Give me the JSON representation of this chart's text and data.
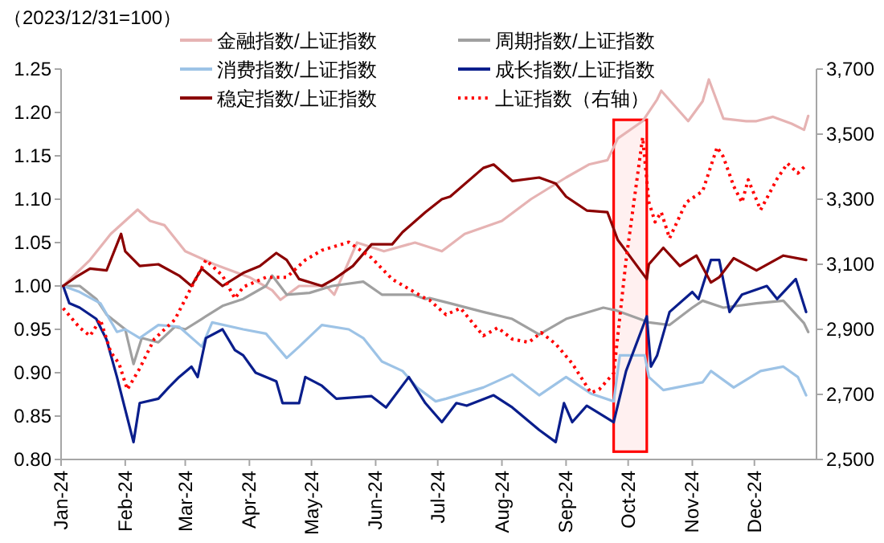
{
  "chart_data": {
    "type": "line",
    "ylabel": "（2023/12/31=100）",
    "legend": "top",
    "xlim": [
      "2024-01-01",
      "2024-12-31"
    ],
    "xticks": [
      {
        "value": "2024-01-01",
        "label": "Jan-24"
      },
      {
        "value": "2024-02-01",
        "label": "Feb-24"
      },
      {
        "value": "2024-03-01",
        "label": "Mar-24"
      },
      {
        "value": "2024-04-01",
        "label": "Apr-24"
      },
      {
        "value": "2024-05-01",
        "label": "May-24"
      },
      {
        "value": "2024-06-01",
        "label": "Jun-24"
      },
      {
        "value": "2024-07-01",
        "label": "Jul-24"
      },
      {
        "value": "2024-08-01",
        "label": "Aug-24"
      },
      {
        "value": "2024-09-01",
        "label": "Sep-24"
      },
      {
        "value": "2024-10-01",
        "label": "Oct-24"
      },
      {
        "value": "2024-11-01",
        "label": "Nov-24"
      },
      {
        "value": "2024-12-01",
        "label": "Dec-24"
      }
    ],
    "ylim": [
      0.8,
      1.25
    ],
    "yticks": [
      {
        "value": 0.8,
        "label": "0.80"
      },
      {
        "value": 0.85,
        "label": "0.85"
      },
      {
        "value": 0.9,
        "label": "0.90"
      },
      {
        "value": 0.95,
        "label": "0.95"
      },
      {
        "value": 1,
        "label": "1.00"
      },
      {
        "value": 1.05,
        "label": "1.05"
      },
      {
        "value": 1.1,
        "label": "1.10"
      },
      {
        "value": 1.15,
        "label": "1.15"
      },
      {
        "value": 1.2,
        "label": "1.20"
      },
      {
        "value": 1.25,
        "label": "1.25"
      }
    ],
    "y2lim": [
      2500,
      3700
    ],
    "y2ticks": [
      {
        "value": 2500,
        "label": "2,500"
      },
      {
        "value": 2700,
        "label": "2,700"
      },
      {
        "value": 2900,
        "label": "2,900"
      },
      {
        "value": 3100,
        "label": "3,100"
      },
      {
        "value": 3300,
        "label": "3,300"
      },
      {
        "value": 3500,
        "label": "3,500"
      },
      {
        "value": 3700,
        "label": "3,700"
      }
    ],
    "bands": [
      {
        "axis": "x",
        "from": "2024-09-24",
        "to": "2024-10-10",
        "color": "#ff0000"
      }
    ],
    "series": [
      {
        "name": "金融指数/上证指数",
        "color": "#e6b3b3",
        "x": [
          "2024-01-02",
          "2024-01-15",
          "2024-01-25",
          "2024-02-07",
          "2024-02-13",
          "2024-02-20",
          "2024-03-01",
          "2024-03-15",
          "2024-04-01",
          "2024-04-12",
          "2024-04-16",
          "2024-04-25",
          "2024-05-08",
          "2024-05-12",
          "2024-05-23",
          "2024-06-05",
          "2024-06-20",
          "2024-07-03",
          "2024-07-14",
          "2024-08-01",
          "2024-08-15",
          "2024-09-01",
          "2024-09-12",
          "2024-09-21",
          "2024-09-26",
          "2024-10-08",
          "2024-10-15",
          "2024-10-17",
          "2024-10-30",
          "2024-11-06",
          "2024-11-09",
          "2024-11-16",
          "2024-11-27",
          "2024-12-02",
          "2024-12-10",
          "2024-12-19",
          "2024-12-25",
          "2024-12-27"
        ],
        "values": [
          1.0,
          1.03,
          1.06,
          1.088,
          1.075,
          1.07,
          1.04,
          1.025,
          1.01,
          0.995,
          0.984,
          1.0,
          1.0,
          0.99,
          1.05,
          1.04,
          1.05,
          1.04,
          1.06,
          1.075,
          1.1,
          1.125,
          1.14,
          1.145,
          1.17,
          1.19,
          1.215,
          1.225,
          1.19,
          1.213,
          1.238,
          1.193,
          1.19,
          1.19,
          1.195,
          1.187,
          1.18,
          1.196
        ]
      },
      {
        "name": "周期指数/上证指数",
        "color": "#a0a0a0",
        "x": [
          "2024-01-02",
          "2024-01-10",
          "2024-01-18",
          "2024-01-23",
          "2024-02-01",
          "2024-02-05",
          "2024-02-09",
          "2024-02-17",
          "2024-02-25",
          "2024-03-01",
          "2024-03-09",
          "2024-03-19",
          "2024-03-29",
          "2024-04-09",
          "2024-04-12",
          "2024-04-19",
          "2024-04-30",
          "2024-05-11",
          "2024-05-26",
          "2024-06-04",
          "2024-06-19",
          "2024-06-25",
          "2024-06-27",
          "2024-07-07",
          "2024-07-23",
          "2024-08-06",
          "2024-08-19",
          "2024-09-01",
          "2024-09-19",
          "2024-09-25",
          "2024-10-11",
          "2024-10-21",
          "2024-11-01",
          "2024-11-06",
          "2024-11-16",
          "2024-12-02",
          "2024-12-15",
          "2024-12-25",
          "2024-12-27"
        ],
        "values": [
          1.0,
          1.0,
          0.985,
          0.967,
          0.95,
          0.91,
          0.94,
          0.935,
          0.953,
          0.95,
          0.962,
          0.977,
          0.985,
          1.0,
          1.012,
          0.99,
          0.992,
          1.0,
          1.005,
          0.99,
          0.99,
          0.985,
          0.986,
          0.98,
          0.97,
          0.962,
          0.944,
          0.962,
          0.975,
          0.972,
          0.958,
          0.955,
          0.975,
          0.983,
          0.975,
          0.98,
          0.983,
          0.957,
          0.947
        ]
      },
      {
        "name": "消费指数/上证指数",
        "color": "#9dc3e6",
        "x": [
          "2024-01-02",
          "2024-01-10",
          "2024-01-20",
          "2024-01-28",
          "2024-02-01",
          "2024-02-08",
          "2024-02-17",
          "2024-02-27",
          "2024-03-09",
          "2024-03-14",
          "2024-03-29",
          "2024-04-09",
          "2024-04-19",
          "2024-04-25",
          "2024-05-06",
          "2024-05-19",
          "2024-05-26",
          "2024-06-04",
          "2024-06-14",
          "2024-06-21",
          "2024-06-30",
          "2024-07-05",
          "2024-07-23",
          "2024-08-06",
          "2024-08-19",
          "2024-09-01",
          "2024-09-13",
          "2024-09-24",
          "2024-09-27",
          "2024-10-09",
          "2024-10-11",
          "2024-10-18",
          "2024-11-06",
          "2024-11-10",
          "2024-11-21",
          "2024-12-04",
          "2024-12-15",
          "2024-12-22",
          "2024-12-26"
        ],
        "values": [
          1.0,
          0.993,
          0.98,
          0.947,
          0.95,
          0.94,
          0.955,
          0.953,
          0.93,
          0.958,
          0.95,
          0.945,
          0.917,
          0.93,
          0.955,
          0.95,
          0.94,
          0.913,
          0.902,
          0.883,
          0.867,
          0.87,
          0.883,
          0.898,
          0.874,
          0.895,
          0.876,
          0.867,
          0.92,
          0.92,
          0.895,
          0.88,
          0.889,
          0.902,
          0.883,
          0.902,
          0.907,
          0.895,
          0.874
        ]
      },
      {
        "name": "成长指数/上证指数",
        "color": "#0a1e8c",
        "x": [
          "2024-01-02",
          "2024-01-05",
          "2024-01-10",
          "2024-01-18",
          "2024-01-23",
          "2024-01-28",
          "2024-02-05",
          "2024-02-08",
          "2024-02-17",
          "2024-02-22",
          "2024-02-27",
          "2024-03-04",
          "2024-03-07",
          "2024-03-11",
          "2024-03-19",
          "2024-03-25",
          "2024-03-29",
          "2024-04-04",
          "2024-04-14",
          "2024-04-17",
          "2024-04-25",
          "2024-04-28",
          "2024-05-06",
          "2024-05-13",
          "2024-05-30",
          "2024-06-06",
          "2024-06-17",
          "2024-06-25",
          "2024-07-03",
          "2024-07-10",
          "2024-07-15",
          "2024-07-28",
          "2024-08-06",
          "2024-08-19",
          "2024-08-27",
          "2024-08-31",
          "2024-09-04",
          "2024-09-11",
          "2024-09-24",
          "2024-09-30",
          "2024-10-10",
          "2024-10-12",
          "2024-10-15",
          "2024-10-21",
          "2024-11-01",
          "2024-11-04",
          "2024-11-10",
          "2024-11-14",
          "2024-11-19",
          "2024-11-25",
          "2024-12-07",
          "2024-12-12",
          "2024-12-21",
          "2024-12-26"
        ],
        "values": [
          1.0,
          0.98,
          0.975,
          0.962,
          0.938,
          0.895,
          0.82,
          0.865,
          0.87,
          0.883,
          0.895,
          0.907,
          0.895,
          0.94,
          0.95,
          0.926,
          0.92,
          0.9,
          0.89,
          0.865,
          0.865,
          0.895,
          0.885,
          0.87,
          0.873,
          0.86,
          0.895,
          0.865,
          0.843,
          0.865,
          0.862,
          0.874,
          0.86,
          0.834,
          0.82,
          0.865,
          0.843,
          0.862,
          0.843,
          0.902,
          0.965,
          0.907,
          0.92,
          0.97,
          0.993,
          0.985,
          1.03,
          1.03,
          0.97,
          0.99,
          1.0,
          0.985,
          1.008,
          0.97
        ]
      },
      {
        "name": "稳定指数/上证指数",
        "color": "#8b0000",
        "x": [
          "2024-01-02",
          "2024-01-08",
          "2024-01-15",
          "2024-01-23",
          "2024-01-30",
          "2024-02-01",
          "2024-02-08",
          "2024-02-17",
          "2024-02-27",
          "2024-03-04",
          "2024-03-09",
          "2024-03-19",
          "2024-03-29",
          "2024-04-06",
          "2024-04-14",
          "2024-04-19",
          "2024-04-25",
          "2024-05-06",
          "2024-05-12",
          "2024-05-21",
          "2024-05-30",
          "2024-06-09",
          "2024-06-14",
          "2024-06-25",
          "2024-07-03",
          "2024-07-07",
          "2024-07-23",
          "2024-07-28",
          "2024-08-06",
          "2024-08-19",
          "2024-08-27",
          "2024-09-01",
          "2024-09-11",
          "2024-09-21",
          "2024-09-26",
          "2024-10-10",
          "2024-10-11",
          "2024-10-18",
          "2024-10-26",
          "2024-11-03",
          "2024-11-10",
          "2024-11-14",
          "2024-11-21",
          "2024-12-02",
          "2024-12-15",
          "2024-12-26"
        ],
        "values": [
          1.0,
          1.01,
          1.02,
          1.018,
          1.06,
          1.04,
          1.023,
          1.025,
          1.012,
          1.0,
          1.02,
          1.0,
          1.015,
          1.023,
          1.038,
          1.03,
          1.008,
          1.0,
          1.008,
          1.023,
          1.048,
          1.048,
          1.062,
          1.085,
          1.1,
          1.103,
          1.136,
          1.14,
          1.121,
          1.125,
          1.118,
          1.103,
          1.087,
          1.085,
          1.053,
          1.008,
          1.025,
          1.044,
          1.023,
          1.035,
          1.004,
          1.01,
          1.032,
          1.018,
          1.035,
          1.03
        ]
      },
      {
        "name": "上证指数（右轴）",
        "color": "#ff0000",
        "axis": "y2",
        "line_style": "dotted",
        "x": [
          "2024-01-02",
          "2024-01-10",
          "2024-01-15",
          "2024-01-20",
          "2024-01-25",
          "2024-01-29",
          "2024-02-02",
          "2024-02-08",
          "2024-02-15",
          "2024-02-25",
          "2024-03-04",
          "2024-03-11",
          "2024-03-19",
          "2024-03-25",
          "2024-03-29",
          "2024-04-09",
          "2024-04-19",
          "2024-04-28",
          "2024-05-06",
          "2024-05-19",
          "2024-05-30",
          "2024-06-09",
          "2024-06-25",
          "2024-06-27",
          "2024-07-05",
          "2024-07-12",
          "2024-07-23",
          "2024-07-30",
          "2024-08-06",
          "2024-08-14",
          "2024-08-20",
          "2024-08-27",
          "2024-09-04",
          "2024-09-13",
          "2024-09-17",
          "2024-09-24",
          "2024-09-30",
          "2024-10-08",
          "2024-10-11",
          "2024-10-14",
          "2024-10-17",
          "2024-10-21",
          "2024-10-29",
          "2024-11-06",
          "2024-11-13",
          "2024-11-16",
          "2024-11-21",
          "2024-11-25",
          "2024-11-28",
          "2024-12-04",
          "2024-12-12",
          "2024-12-17",
          "2024-12-22",
          "2024-12-26"
        ],
        "values": [
          2965,
          2905,
          2880,
          2930,
          2830,
          2795,
          2715,
          2780,
          2870,
          2930,
          3030,
          3113,
          3065,
          2995,
          3030,
          3060,
          3060,
          3113,
          3143,
          3168,
          3120,
          3054,
          2995,
          2990,
          2945,
          2965,
          2880,
          2905,
          2870,
          2860,
          2890,
          2855,
          2795,
          2705,
          2715,
          2765,
          3113,
          3490,
          3292,
          3230,
          3260,
          3180,
          3290,
          3325,
          3460,
          3430,
          3340,
          3290,
          3360,
          3267,
          3363,
          3410,
          3380,
          3405
        ]
      }
    ]
  }
}
